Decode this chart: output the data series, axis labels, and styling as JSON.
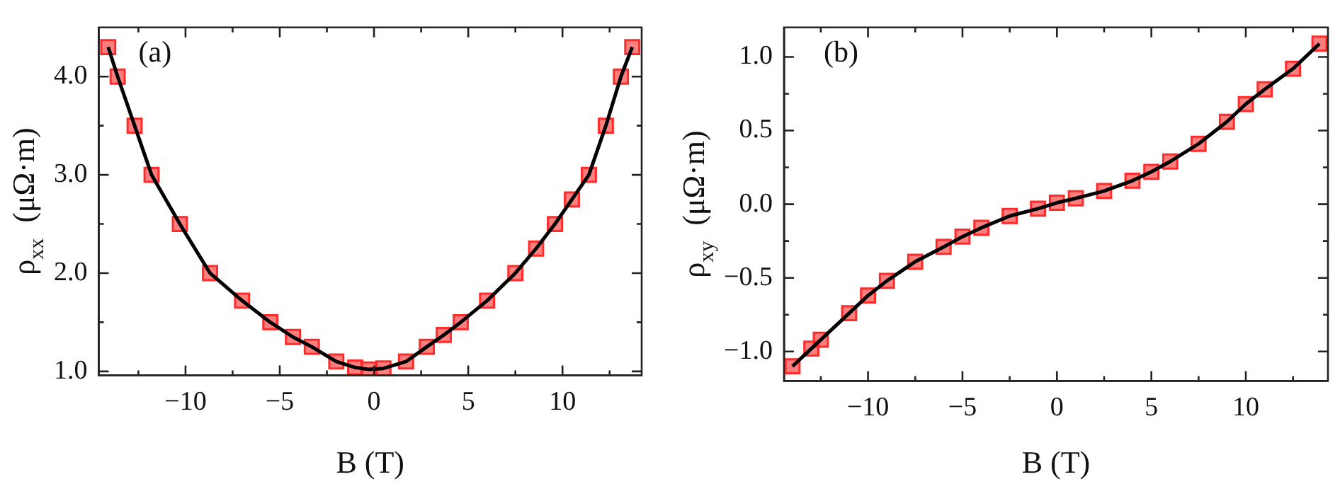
{
  "chart_data": [
    {
      "type": "scatter",
      "xlabel": "B (T)",
      "ylabel": "ρ$_{xx}$  (μΩ·m)",
      "annotations": [
        "(a)"
      ],
      "grid": false,
      "legend": false,
      "x": [
        -14.1,
        -13.6,
        -12.7,
        -11.8,
        -10.3,
        -8.7,
        -7,
        -5.5,
        -4.3,
        -3.3,
        -2,
        -1,
        -0.3,
        0.5,
        1.7,
        2.8,
        3.7,
        4.6,
        6,
        7.5,
        8.6,
        9.6,
        10.5,
        11.4,
        12.3,
        13.1,
        13.7
      ],
      "series": [
        {
          "color": "#ff2a2a",
          "marker": "square",
          "values": [
            4.3,
            4.0,
            3.5,
            3.0,
            2.5,
            2.0,
            1.72,
            1.5,
            1.35,
            1.25,
            1.1,
            1.04,
            1.02,
            1.03,
            1.1,
            1.25,
            1.37,
            1.5,
            1.72,
            2.0,
            2.25,
            2.5,
            2.75,
            3.0,
            3.5,
            4.0,
            4.3
          ]
        },
        {
          "type": "line",
          "color": "#000000",
          "marker": "none",
          "line_style": "solid",
          "values": [
            4.3,
            4.0,
            3.5,
            3.0,
            2.5,
            2.0,
            1.72,
            1.5,
            1.35,
            1.25,
            1.1,
            1.04,
            1.02,
            1.03,
            1.1,
            1.25,
            1.37,
            1.5,
            1.72,
            2.0,
            2.25,
            2.5,
            2.75,
            3.0,
            3.5,
            4.0,
            4.3
          ]
        }
      ],
      "xlim": [
        -14.6,
        14.2
      ],
      "xticks": [
        {
          "value": -12.5,
          "label": null
        },
        {
          "value": -10,
          "label": "−10"
        },
        {
          "value": -7.5,
          "label": null
        },
        {
          "value": -5,
          "label": "−5"
        },
        {
          "value": -2.5,
          "label": null
        },
        0,
        {
          "value": 2.5,
          "label": null
        },
        5,
        {
          "value": 7.5,
          "label": null
        },
        10,
        {
          "value": 12.5,
          "label": null
        }
      ],
      "ylim": [
        0.96,
        4.5
      ],
      "yticks": [
        {
          "value": 1,
          "label": "1.0"
        },
        {
          "value": 1.5,
          "label": null
        },
        {
          "value": 2,
          "label": "2.0"
        },
        {
          "value": 2.5,
          "label": null
        },
        {
          "value": 3,
          "label": "3.0"
        },
        {
          "value": 3.5,
          "label": null
        },
        {
          "value": 4,
          "label": "4.0"
        }
      ]
    },
    {
      "type": "scatter",
      "xlabel": "B (T)",
      "ylabel": "ρ$_{xy}$  (μΩ·m)",
      "annotations": [
        "(b)"
      ],
      "grid": false,
      "legend": false,
      "x": [
        -14,
        -13,
        -12.5,
        -11,
        -10,
        -9,
        -7.5,
        -6,
        -5,
        -4,
        -2.5,
        -1,
        0,
        1,
        2.5,
        4,
        5,
        6,
        7.5,
        9,
        10,
        11,
        12.5,
        13.9
      ],
      "series": [
        {
          "color": "#ff2a2a",
          "marker": "square",
          "values": [
            -1.1,
            -0.98,
            -0.92,
            -0.74,
            -0.62,
            -0.52,
            -0.39,
            -0.29,
            -0.22,
            -0.16,
            -0.08,
            -0.03,
            0.01,
            0.04,
            0.09,
            0.16,
            0.22,
            0.29,
            0.41,
            0.56,
            0.68,
            0.78,
            0.92,
            1.09
          ]
        },
        {
          "type": "line",
          "color": "#000000",
          "marker": "none",
          "line_style": "solid",
          "values": [
            -1.1,
            -0.98,
            -0.92,
            -0.74,
            -0.62,
            -0.52,
            -0.39,
            -0.29,
            -0.22,
            -0.16,
            -0.08,
            -0.03,
            0.01,
            0.04,
            0.09,
            0.16,
            0.22,
            0.29,
            0.41,
            0.56,
            0.68,
            0.78,
            0.92,
            1.09
          ]
        }
      ],
      "xlim": [
        -14.45,
        14.35
      ],
      "xticks": [
        {
          "value": -12.5,
          "label": null
        },
        {
          "value": -10,
          "label": "−10"
        },
        {
          "value": -7.5,
          "label": null
        },
        {
          "value": -5,
          "label": "−5"
        },
        {
          "value": -2.5,
          "label": null
        },
        0,
        {
          "value": 2.5,
          "label": null
        },
        5,
        {
          "value": 7.5,
          "label": null
        },
        10,
        {
          "value": 12.5,
          "label": null
        }
      ],
      "ylim": [
        -1.2,
        1.2
      ],
      "yticks": [
        {
          "value": -1,
          "label": "−1.0"
        },
        {
          "value": -0.75,
          "label": null
        },
        {
          "value": -0.5,
          "label": "−0.5"
        },
        {
          "value": -0.25,
          "label": null
        },
        {
          "value": 0,
          "label": "0.0"
        },
        {
          "value": 0.25,
          "label": null
        },
        {
          "value": 0.5,
          "label": "0.5"
        },
        {
          "value": 0.75,
          "label": null
        },
        {
          "value": 1,
          "label": "1.0"
        }
      ]
    }
  ]
}
